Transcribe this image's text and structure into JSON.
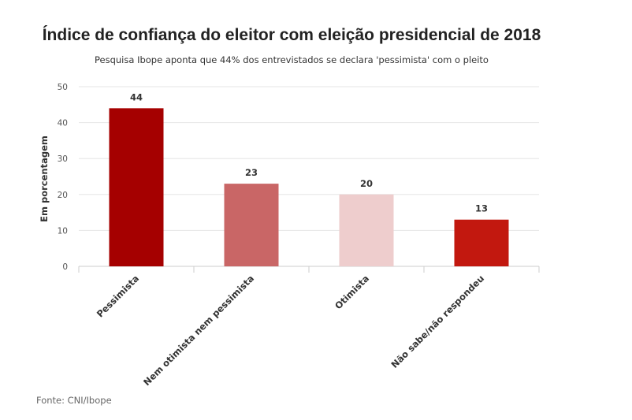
{
  "chart_data": {
    "type": "bar",
    "title": "Índice de confiança do eleitor com eleição presidencial de 2018",
    "subtitle": "Pesquisa Ibope aponta que 44% dos entrevistados se declara 'pessimista' com o pleito",
    "categories": [
      "Pessimista",
      "Nem otimista nem pessimista",
      "Otimista",
      "Não sabe/não respondeu"
    ],
    "values": [
      44,
      23,
      20,
      13
    ],
    "colors": [
      "#a50000",
      "#c96666",
      "#eecdcd",
      "#c2180f"
    ],
    "xlabel": "",
    "ylabel": "Em porcentagem",
    "ylim": [
      0,
      50
    ],
    "yticks": [
      0,
      10,
      20,
      30,
      40,
      50
    ],
    "grid": true,
    "source": "Fonte: CNI/Ibope"
  }
}
